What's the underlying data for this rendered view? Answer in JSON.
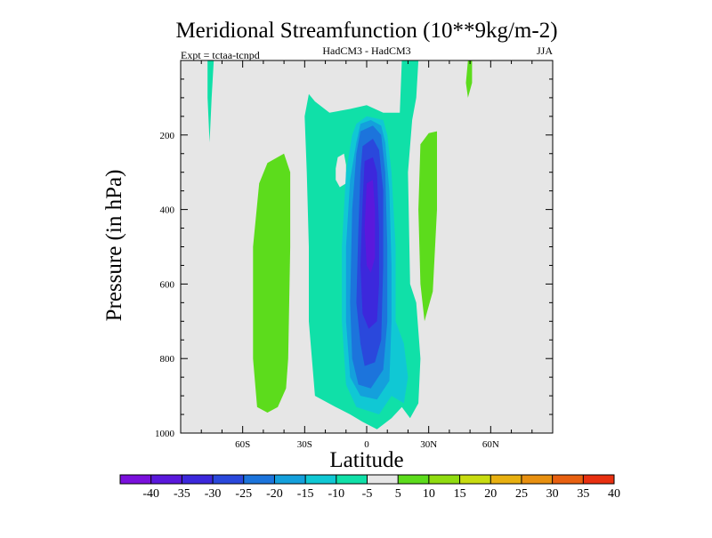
{
  "chart_data": {
    "type": "contour",
    "title": "Meridional Streamfunction (10**9kg/m-2)",
    "left_subtitle": "Expt = tctaa-tcnpd",
    "center_subtitle": "HadCM3 - HadCM3",
    "right_subtitle": "JJA",
    "xlabel": "Latitude",
    "ylabel": "Pressure (in hPa)",
    "xlim": [
      -90,
      90
    ],
    "ylim": [
      1000,
      0
    ],
    "x_ticks": [
      {
        "value": -60,
        "label": "60S"
      },
      {
        "value": -30,
        "label": "30S"
      },
      {
        "value": 0,
        "label": "0"
      },
      {
        "value": 30,
        "label": "30N"
      },
      {
        "value": 60,
        "label": "60N"
      }
    ],
    "y_ticks": [
      {
        "value": 200,
        "label": "200"
      },
      {
        "value": 400,
        "label": "400"
      },
      {
        "value": 600,
        "label": "600"
      },
      {
        "value": 800,
        "label": "800"
      },
      {
        "value": 1000,
        "label": "1000"
      }
    ],
    "background_color": "#e6e6e6",
    "colorbar": {
      "levels": [
        "-40",
        "-35",
        "-30",
        "-25",
        "-20",
        "-15",
        "-10",
        "-5",
        "5",
        "10",
        "15",
        "20",
        "25",
        "30",
        "35",
        "40"
      ],
      "colors": [
        "#7a10dc",
        "#5a18dc",
        "#3c28dc",
        "#2a48dc",
        "#1c74dc",
        "#14a0dc",
        "#10c8d4",
        "#10e0a8",
        "#e6e6e6",
        "#5cdc1c",
        "#90dc10",
        "#c8dc10",
        "#e8b010",
        "#e89010",
        "#e86010",
        "#e83010"
      ]
    },
    "contour_regions": [
      {
        "level": "5 to 10",
        "color": "#5cdc1c",
        "polygon": [
          [
            -53,
            930
          ],
          [
            -55,
            800
          ],
          [
            -55,
            500
          ],
          [
            -52,
            330
          ],
          [
            -48,
            275
          ],
          [
            -40,
            250
          ],
          [
            -37,
            300
          ],
          [
            -37,
            500
          ],
          [
            -38,
            800
          ],
          [
            -39,
            880
          ],
          [
            -43,
            930
          ],
          [
            -48,
            945
          ]
        ]
      },
      {
        "level": "5 to 10",
        "color": "#5cdc1c",
        "polygon": [
          [
            26,
            225
          ],
          [
            30,
            195
          ],
          [
            34,
            190
          ],
          [
            34,
            400
          ],
          [
            32,
            620
          ],
          [
            28,
            700
          ],
          [
            26,
            600
          ],
          [
            25,
            400
          ]
        ]
      },
      {
        "level": "5 to 10",
        "color": "#5cdc1c",
        "polygon": [
          [
            49,
            0
          ],
          [
            51,
            0
          ],
          [
            51,
            60
          ],
          [
            49,
            100
          ],
          [
            48,
            60
          ]
        ]
      },
      {
        "level": "-10 to -5",
        "color": "#10e0a8",
        "polygon": [
          [
            -77,
            0
          ],
          [
            -74,
            0
          ],
          [
            -75,
            100
          ],
          [
            -76,
            220
          ],
          [
            -77,
            100
          ]
        ]
      },
      {
        "level": "-10 to -5",
        "color": "#10e0a8",
        "polygon": [
          [
            -28,
            90
          ],
          [
            -25,
            110
          ],
          [
            -18,
            140
          ],
          [
            -8,
            130
          ],
          [
            0,
            120
          ],
          [
            8,
            140
          ],
          [
            16,
            140
          ],
          [
            17,
            0
          ],
          [
            25,
            0
          ],
          [
            24,
            100
          ],
          [
            22,
            160
          ],
          [
            20,
            300
          ],
          [
            21,
            600
          ],
          [
            24,
            650
          ],
          [
            26,
            800
          ],
          [
            25,
            920
          ],
          [
            21,
            960
          ],
          [
            17,
            930
          ],
          [
            12,
            960
          ],
          [
            5,
            990
          ],
          [
            -2,
            970
          ],
          [
            -8,
            950
          ],
          [
            -15,
            930
          ],
          [
            -25,
            900
          ],
          [
            -28,
            700
          ],
          [
            -28,
            500
          ],
          [
            -29,
            300
          ],
          [
            -30,
            150
          ]
        ]
      },
      {
        "level": "5 to 10",
        "color": "#e6e6e6",
        "polygon": [
          [
            -15,
            290
          ],
          [
            -14,
            260
          ],
          [
            -11,
            250
          ],
          [
            -10,
            280
          ],
          [
            -10,
            330
          ],
          [
            -13,
            340
          ],
          [
            -15,
            320
          ]
        ]
      },
      {
        "level": "-15 to -10",
        "color": "#10c8d4",
        "polygon": [
          [
            -5,
            170
          ],
          [
            0,
            150
          ],
          [
            8,
            160
          ],
          [
            10,
            200
          ],
          [
            12,
            300
          ],
          [
            14,
            500
          ],
          [
            14,
            700
          ],
          [
            18,
            760
          ],
          [
            20,
            850
          ],
          [
            18,
            920
          ],
          [
            12,
            900
          ],
          [
            6,
            950
          ],
          [
            -5,
            930
          ],
          [
            -10,
            870
          ],
          [
            -12,
            700
          ],
          [
            -12,
            500
          ],
          [
            -10,
            300
          ],
          [
            -7,
            200
          ]
        ]
      },
      {
        "level": "-20 to -15",
        "color": "#14a0dc",
        "polygon": [
          [
            -3,
            170
          ],
          [
            2,
            160
          ],
          [
            7,
            175
          ],
          [
            9,
            220
          ],
          [
            11,
            350
          ],
          [
            12,
            550
          ],
          [
            12,
            700
          ],
          [
            11,
            860
          ],
          [
            5,
            910
          ],
          [
            -3,
            900
          ],
          [
            -8,
            850
          ],
          [
            -10,
            700
          ],
          [
            -10,
            500
          ],
          [
            -8,
            320
          ],
          [
            -5,
            220
          ]
        ]
      },
      {
        "level": "-25 to -20",
        "color": "#1c74dc",
        "polygon": [
          [
            -3,
            190
          ],
          [
            3,
            175
          ],
          [
            7,
            200
          ],
          [
            9,
            300
          ],
          [
            10,
            500
          ],
          [
            10,
            700
          ],
          [
            8,
            830
          ],
          [
            2,
            880
          ],
          [
            -4,
            870
          ],
          [
            -7,
            800
          ],
          [
            -8,
            650
          ],
          [
            -7,
            400
          ],
          [
            -5,
            250
          ]
        ]
      },
      {
        "level": "-30 to -25",
        "color": "#2a48dc",
        "polygon": [
          [
            -2,
            230
          ],
          [
            3,
            210
          ],
          [
            6,
            240
          ],
          [
            8,
            350
          ],
          [
            8,
            550
          ],
          [
            7,
            750
          ],
          [
            4,
            810
          ],
          [
            -1,
            820
          ],
          [
            -3,
            760
          ],
          [
            -5,
            650
          ],
          [
            -4,
            450
          ],
          [
            -3,
            300
          ]
        ]
      },
      {
        "level": "-35 to -30",
        "color": "#3c28dc",
        "polygon": [
          [
            -1,
            270
          ],
          [
            3,
            260
          ],
          [
            5,
            300
          ],
          [
            6,
            450
          ],
          [
            6,
            600
          ],
          [
            5,
            700
          ],
          [
            1,
            720
          ],
          [
            -2,
            680
          ],
          [
            -3,
            550
          ],
          [
            -2,
            380
          ]
        ]
      },
      {
        "level": "-40 to -35",
        "color": "#5a18dc",
        "polygon": [
          [
            0,
            330
          ],
          [
            3,
            320
          ],
          [
            4,
            400
          ],
          [
            4,
            530
          ],
          [
            2,
            570
          ],
          [
            0,
            550
          ],
          [
            -1,
            450
          ]
        ]
      }
    ]
  }
}
